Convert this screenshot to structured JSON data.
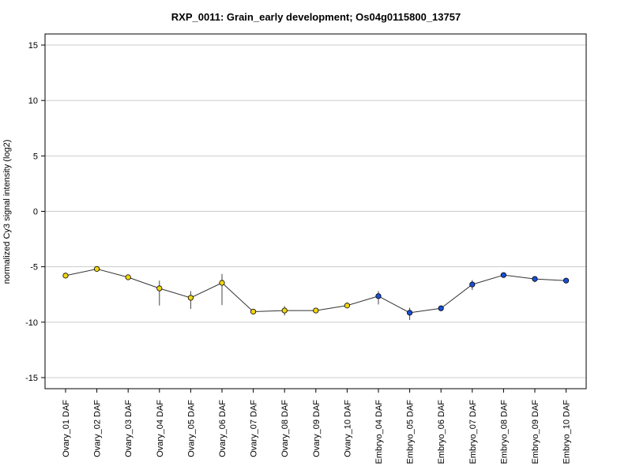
{
  "chart_data": {
    "type": "line",
    "title": "RXP_0011: Grain_early development; Os04g0115800_13757",
    "ylabel": "normalized Cy3 signal intensity (log2)",
    "xlabel": "",
    "ylim": [
      -16,
      16
    ],
    "yticks": [
      -15,
      -10,
      -5,
      0,
      5,
      10,
      15
    ],
    "grid": true,
    "categories": [
      "Ovary_01 DAF",
      "Ovary_02 DAF",
      "Ovary_03 DAF",
      "Ovary_04 DAF",
      "Ovary_05 DAF",
      "Ovary_06 DAF",
      "Ovary_07 DAF",
      "Ovary_08 DAF",
      "Ovary_09 DAF",
      "Ovary_10 DAF",
      "Embryo_04 DAF",
      "Embryo_05 DAF",
      "Embryo_06 DAF",
      "Embryo_07 DAF",
      "Embryo_08 DAF",
      "Embryo_09 DAF",
      "Embryo_10 DAF"
    ],
    "series": [
      {
        "values": [
          -5.8,
          -5.2,
          -5.95,
          -6.95,
          -7.8,
          -6.45,
          -9.05,
          -8.95,
          -8.95,
          -8.5,
          -7.65,
          -9.15,
          -8.75,
          -6.6,
          -5.75,
          -6.1,
          -6.25
        ],
        "err_low": [
          -5.8,
          -5.2,
          -5.95,
          -8.5,
          -8.8,
          -8.45,
          -9.05,
          -9.4,
          -8.95,
          -8.5,
          -8.4,
          -9.8,
          -8.75,
          -7.1,
          -5.75,
          -6.4,
          -6.25
        ],
        "err_high": [
          -5.8,
          -5.2,
          -5.95,
          -6.25,
          -7.2,
          -5.65,
          -9.05,
          -8.55,
          -8.95,
          -8.5,
          -7.2,
          -8.7,
          -8.75,
          -6.2,
          -5.75,
          -5.85,
          -6.25
        ],
        "colors": [
          "#f2d50f",
          "#f2d50f",
          "#f2d50f",
          "#f2d50f",
          "#f2d50f",
          "#f2d50f",
          "#f2d50f",
          "#f2d50f",
          "#f2d50f",
          "#f2d50f",
          "#1a4fd6",
          "#1a4fd6",
          "#1a4fd6",
          "#1a4fd6",
          "#1a4fd6",
          "#1a4fd6",
          "#1a4fd6"
        ]
      }
    ]
  }
}
